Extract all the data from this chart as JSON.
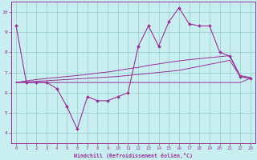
{
  "xlabel": "Windchill (Refroidissement éolien,°C)",
  "background_color": "#c8eef0",
  "grid_color": "#99cccc",
  "line_color": "#993399",
  "x_hours": [
    0,
    1,
    2,
    3,
    4,
    5,
    6,
    7,
    8,
    9,
    10,
    11,
    12,
    13,
    14,
    15,
    16,
    17,
    18,
    19,
    20,
    21,
    22,
    23
  ],
  "series_main": [
    9.3,
    6.5,
    6.5,
    6.5,
    6.2,
    5.3,
    4.2,
    5.8,
    5.6,
    5.6,
    5.8,
    6.0,
    8.3,
    9.3,
    8.3,
    9.5,
    10.2,
    9.4,
    9.3,
    9.3,
    8.0,
    7.8,
    6.8,
    6.7
  ],
  "series_line2": [
    6.5,
    6.5,
    6.5,
    6.5,
    6.5,
    6.5,
    6.5,
    6.5,
    6.5,
    6.5,
    6.5,
    6.5,
    6.5,
    6.5,
    6.5,
    6.5,
    6.5,
    6.5,
    6.5,
    6.5,
    6.5,
    6.5,
    6.5,
    6.7
  ],
  "series_line3": [
    6.5,
    6.53,
    6.56,
    6.59,
    6.62,
    6.65,
    6.68,
    6.71,
    6.74,
    6.77,
    6.8,
    6.85,
    6.9,
    6.95,
    7.0,
    7.05,
    7.1,
    7.2,
    7.3,
    7.4,
    7.5,
    7.6,
    6.8,
    6.7
  ],
  "series_line4": [
    6.5,
    6.58,
    6.65,
    6.7,
    6.75,
    6.8,
    6.85,
    6.9,
    6.97,
    7.02,
    7.1,
    7.18,
    7.25,
    7.35,
    7.42,
    7.5,
    7.57,
    7.63,
    7.68,
    7.73,
    7.78,
    7.83,
    6.85,
    6.75
  ],
  "ylim": [
    3.5,
    10.5
  ],
  "yticks": [
    4,
    5,
    6,
    7,
    8,
    9,
    10
  ],
  "xlim": [
    -0.5,
    23.5
  ],
  "xticks": [
    0,
    1,
    2,
    3,
    4,
    5,
    6,
    7,
    8,
    9,
    10,
    11,
    12,
    13,
    14,
    15,
    16,
    17,
    18,
    19,
    20,
    21,
    22,
    23
  ],
  "figsize": [
    3.2,
    2.0
  ],
  "dpi": 100
}
